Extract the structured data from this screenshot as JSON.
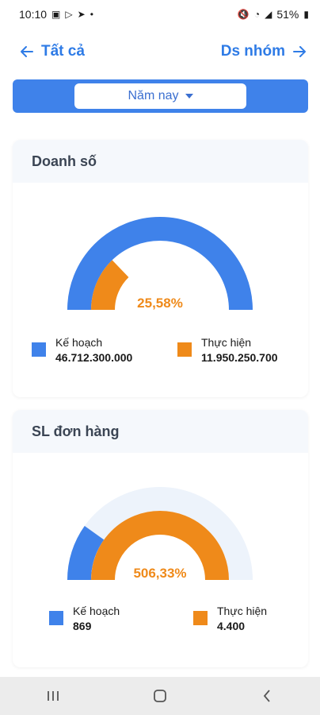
{
  "status_bar": {
    "time": "10:10",
    "battery": "51%"
  },
  "nav": {
    "back_label": "Tất cả",
    "next_label": "Ds nhóm"
  },
  "filter": {
    "selected": "Năm nay"
  },
  "colors": {
    "primary": "#3f82ea",
    "accent": "#ef8a1a",
    "track": "#edf3fb"
  },
  "cards": [
    {
      "title": "Doanh số",
      "percent_label": "25,58%",
      "plan_label": "Kế hoạch",
      "plan_value": "46.712.300.000",
      "actual_label": "Thực hiện",
      "actual_value": "11.950.250.700",
      "plan_fraction": 1.0,
      "actual_fraction": 0.2558
    },
    {
      "title": "SL đơn hàng",
      "percent_label": "506,33%",
      "plan_label": "Kế hoạch",
      "plan_value": "869",
      "actual_label": "Thực hiện",
      "actual_value": "4.400",
      "plan_fraction": 0.1975,
      "actual_fraction": 1.0
    }
  ]
}
